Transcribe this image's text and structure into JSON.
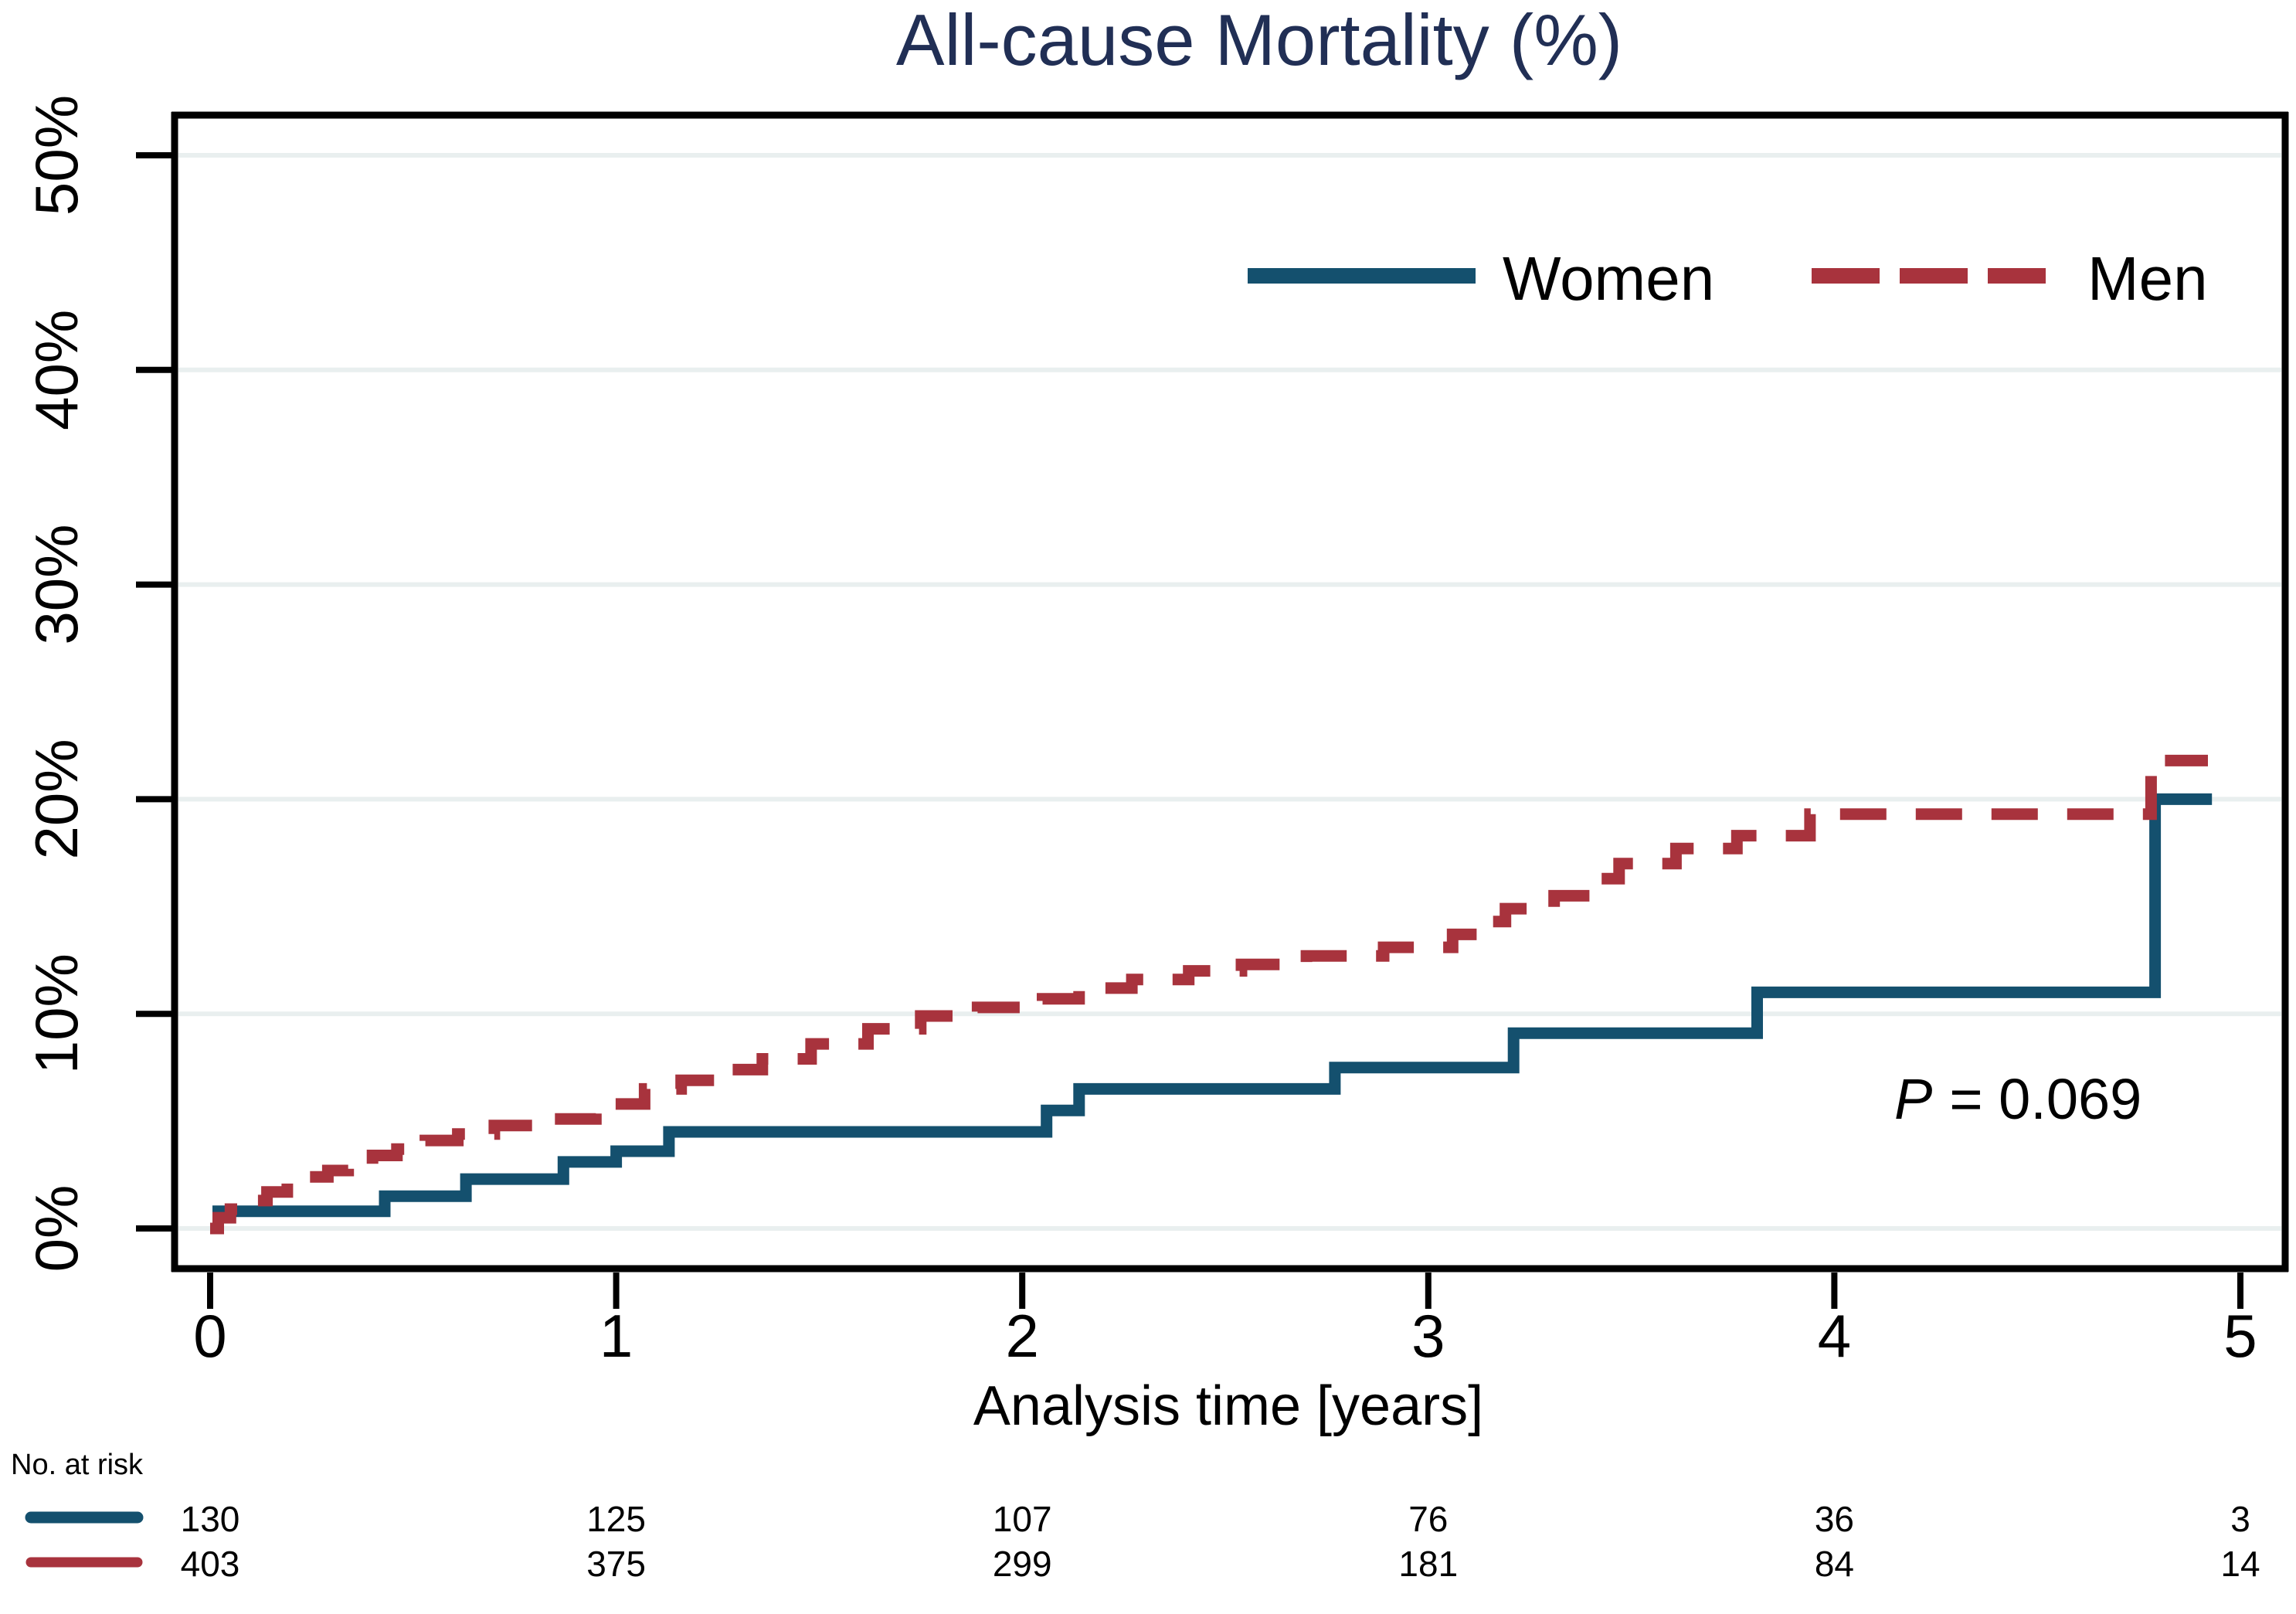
{
  "title": "All-cause Mortality (%)",
  "annotation": {
    "p_label": "P",
    "p_rest": "= 0.069",
    "full_text": "P = 0.069"
  },
  "legend": {
    "items": [
      {
        "label": "Women",
        "style": "solid"
      },
      {
        "label": "Men",
        "style": "dashed"
      }
    ]
  },
  "x_axis": {
    "label": "Analysis time [years]",
    "ticks": [
      "0",
      "1",
      "2",
      "3",
      "4",
      "5"
    ]
  },
  "y_axis": {
    "ticks": [
      "0%",
      "10%",
      "20%",
      "30%",
      "40%",
      "50%"
    ]
  },
  "risk_table": {
    "heading": "No. at risk",
    "rows": [
      {
        "series": "Women",
        "counts": [
          "130",
          "125",
          "107",
          "76",
          "36",
          "3"
        ]
      },
      {
        "series": "Men",
        "counts": [
          "403",
          "375",
          "299",
          "181",
          "84",
          "14"
        ]
      }
    ]
  },
  "colors": {
    "women_line": "#14506e",
    "men_line": "#a8333d",
    "title": "#212f55",
    "grid": "#e9efef",
    "axis": "#000000",
    "text": "#000000",
    "background": "#ffffff"
  },
  "chart_data": {
    "type": "line",
    "subtype": "kaplan-meier-step",
    "title": "All-cause Mortality (%)",
    "xlabel": "Analysis time [years]",
    "ylabel": "",
    "xlim": [
      0,
      5.15
    ],
    "ylim": [
      0,
      52
    ],
    "xticks": [
      0,
      1,
      2,
      3,
      4,
      5
    ],
    "ytick_values": [
      0,
      10,
      20,
      30,
      40,
      50
    ],
    "ytick_labels": [
      "0%",
      "10%",
      "20%",
      "30%",
      "40%",
      "50%"
    ],
    "grid": "horizontal",
    "legend_position": "inside-top-right",
    "annotation": {
      "text": "P = 0.069",
      "x": 4.45,
      "y": 5.2
    },
    "series": [
      {
        "name": "Women",
        "color": "#14506e",
        "line_style": "solid",
        "end_time": 4.93,
        "steps_time_pct": [
          [
            0,
            0
          ],
          [
            0.02,
            0.8
          ],
          [
            0.43,
            1.5
          ],
          [
            0.63,
            2.3
          ],
          [
            0.87,
            3.1
          ],
          [
            1.0,
            3.6
          ],
          [
            1.13,
            4.5
          ],
          [
            2.06,
            5.5
          ],
          [
            2.14,
            6.5
          ],
          [
            2.77,
            7.5
          ],
          [
            3.21,
            9.1
          ],
          [
            3.81,
            11.0
          ],
          [
            4.79,
            20.0
          ]
        ]
      },
      {
        "name": "Men",
        "color": "#a8333d",
        "line_style": "dashed",
        "end_time": 4.92,
        "steps_time_pct": [
          [
            0,
            0
          ],
          [
            0.02,
            0.5
          ],
          [
            0.05,
            0.9
          ],
          [
            0.09,
            1.3
          ],
          [
            0.14,
            1.7
          ],
          [
            0.19,
            2.1
          ],
          [
            0.24,
            2.4
          ],
          [
            0.29,
            2.7
          ],
          [
            0.34,
            3.0
          ],
          [
            0.4,
            3.4
          ],
          [
            0.46,
            3.7
          ],
          [
            0.53,
            4.1
          ],
          [
            0.61,
            4.4
          ],
          [
            0.7,
            4.8
          ],
          [
            0.82,
            5.1
          ],
          [
            0.95,
            5.8
          ],
          [
            1.07,
            6.5
          ],
          [
            1.16,
            6.9
          ],
          [
            1.26,
            7.4
          ],
          [
            1.36,
            7.9
          ],
          [
            1.48,
            8.6
          ],
          [
            1.62,
            9.3
          ],
          [
            1.75,
            9.9
          ],
          [
            1.89,
            10.3
          ],
          [
            2.05,
            10.7
          ],
          [
            2.14,
            11.2
          ],
          [
            2.27,
            11.6
          ],
          [
            2.41,
            12.0
          ],
          [
            2.54,
            12.3
          ],
          [
            2.7,
            12.7
          ],
          [
            2.89,
            13.1
          ],
          [
            3.06,
            13.7
          ],
          [
            3.13,
            14.3
          ],
          [
            3.19,
            14.9
          ],
          [
            3.31,
            15.5
          ],
          [
            3.41,
            16.3
          ],
          [
            3.47,
            17.0
          ],
          [
            3.61,
            17.7
          ],
          [
            3.76,
            18.3
          ],
          [
            3.94,
            19.3
          ],
          [
            4.78,
            21.8
          ]
        ]
      }
    ],
    "risk_table": {
      "heading": "No. at risk",
      "times": [
        0,
        1,
        2,
        3,
        4,
        5
      ],
      "rows": [
        {
          "name": "Women",
          "counts": [
            130,
            125,
            107,
            76,
            36,
            3
          ]
        },
        {
          "name": "Men",
          "counts": [
            403,
            375,
            299,
            181,
            84,
            14
          ]
        }
      ]
    }
  }
}
